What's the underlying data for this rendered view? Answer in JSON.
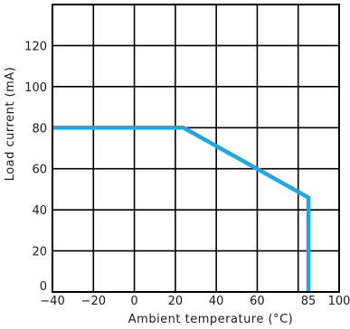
{
  "chart_data": {
    "type": "line",
    "title": "",
    "xlabel": "Ambient temperature (°C)",
    "ylabel": "Load current (mA)",
    "xlim": [
      -40,
      100
    ],
    "ylim": [
      0,
      140
    ],
    "grid": true,
    "x_ticks": [
      -40,
      -20,
      0,
      20,
      40,
      60,
      85,
      100
    ],
    "x_tick_labels": [
      "−40",
      "−20",
      "0",
      "20",
      "40",
      "60",
      "85",
      "100"
    ],
    "y_ticks": [
      0,
      20,
      40,
      60,
      80,
      100,
      120
    ],
    "y_tick_labels": [
      "0",
      "20",
      "40",
      "60",
      "80",
      "100",
      "120"
    ],
    "series": [
      {
        "color": "#1ea7e4",
        "x": [
          -40,
          24,
          85,
          85
        ],
        "y": [
          80,
          80,
          46,
          0
        ]
      }
    ]
  }
}
